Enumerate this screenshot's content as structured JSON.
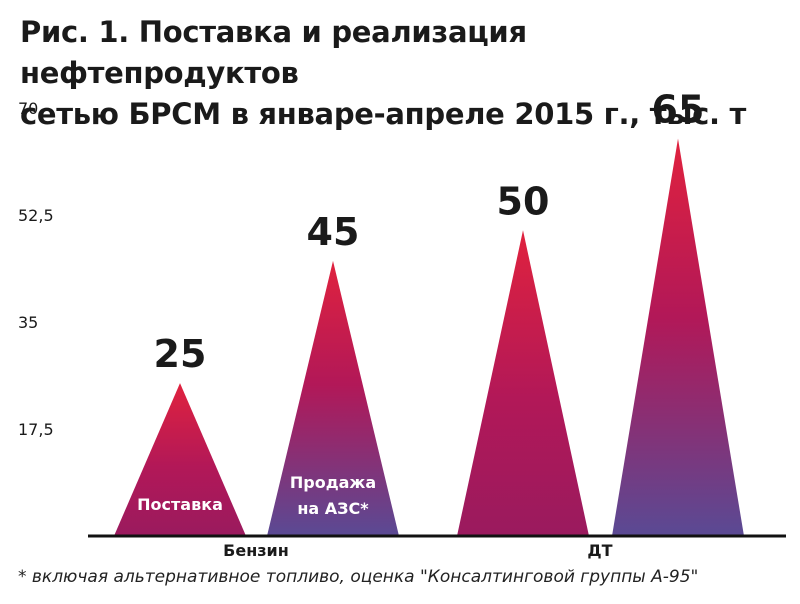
{
  "title_line1": "Рис. 1. Поставка и реализация нефтепродуктов",
  "title_line2": "сетью БРСМ в январе-апреле 2015 г., тыс. т",
  "footnote": "* включая альтернативное топливо, оценка \"Консалтинговой группы А-95\"",
  "colors": {
    "apex": "#e0223e",
    "mid": "#b21858",
    "base_supply": "#9a1a5e",
    "base_sale": "#5a4a94",
    "axis": "#111111"
  },
  "chart_data": {
    "type": "bar",
    "mark_shape": "triangle",
    "categories": [
      "Бензин",
      "ДТ"
    ],
    "y_ticks": [
      "17,5",
      "35",
      "52,5",
      "70"
    ],
    "y_tick_values": [
      17.5,
      35,
      52.5,
      70
    ],
    "ylim": [
      0,
      70
    ],
    "grid": false,
    "series": [
      {
        "name": "Поставка",
        "values": [
          25,
          50
        ]
      },
      {
        "name": "Продажа на АЗС*",
        "values": [
          45,
          65
        ]
      }
    ],
    "data_labels": [
      [
        "25",
        "50"
      ],
      [
        "45",
        "65"
      ]
    ],
    "inner_labels": {
      "supply": [
        "Поставка"
      ],
      "sale": [
        "Продажа",
        "на АЗС*"
      ]
    }
  }
}
